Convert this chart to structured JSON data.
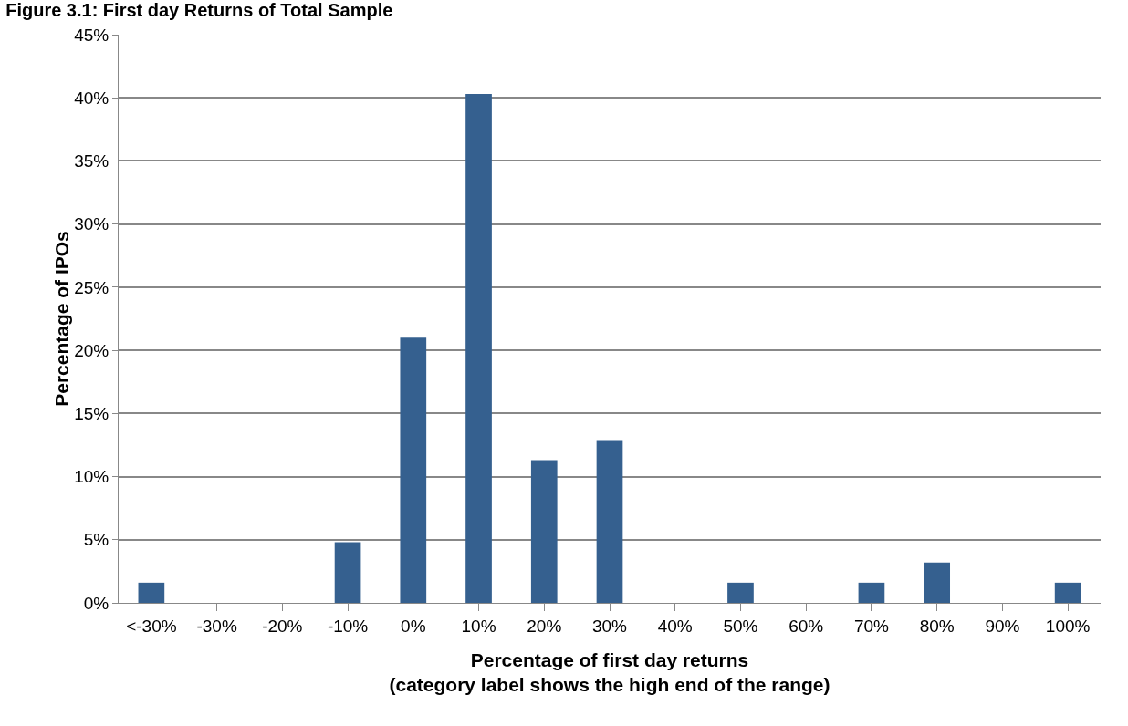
{
  "chart_data": {
    "type": "bar",
    "title": "Figure 3.1: First day Returns of Total Sample",
    "xlabel": "Percentage of first day returns\n(category label shows the high end of the range)",
    "ylabel": "Percentage of IPOs",
    "categories": [
      "<-30%",
      "-30%",
      "-20%",
      "-10%",
      "0%",
      "10%",
      "20%",
      "30%",
      "40%",
      "50%",
      "60%",
      "70%",
      "80%",
      "90%",
      "100%"
    ],
    "values": [
      1.6,
      0,
      0,
      4.8,
      21.0,
      40.3,
      11.3,
      12.9,
      0,
      1.6,
      0,
      1.6,
      3.2,
      0,
      1.6
    ],
    "color": "#35608f",
    "ylim": [
      0,
      45
    ],
    "yticks": [
      {
        "value": 0,
        "label": "0%"
      },
      {
        "value": 5,
        "label": "5%"
      },
      {
        "value": 10,
        "label": "10%"
      },
      {
        "value": 15,
        "label": "15%"
      },
      {
        "value": 20,
        "label": "20%"
      },
      {
        "value": 25,
        "label": "25%"
      },
      {
        "value": 30,
        "label": "30%"
      },
      {
        "value": 35,
        "label": "35%"
      },
      {
        "value": 40,
        "label": "40%"
      },
      {
        "value": 45,
        "label": "45%"
      }
    ],
    "grid": "y",
    "legend": false
  }
}
